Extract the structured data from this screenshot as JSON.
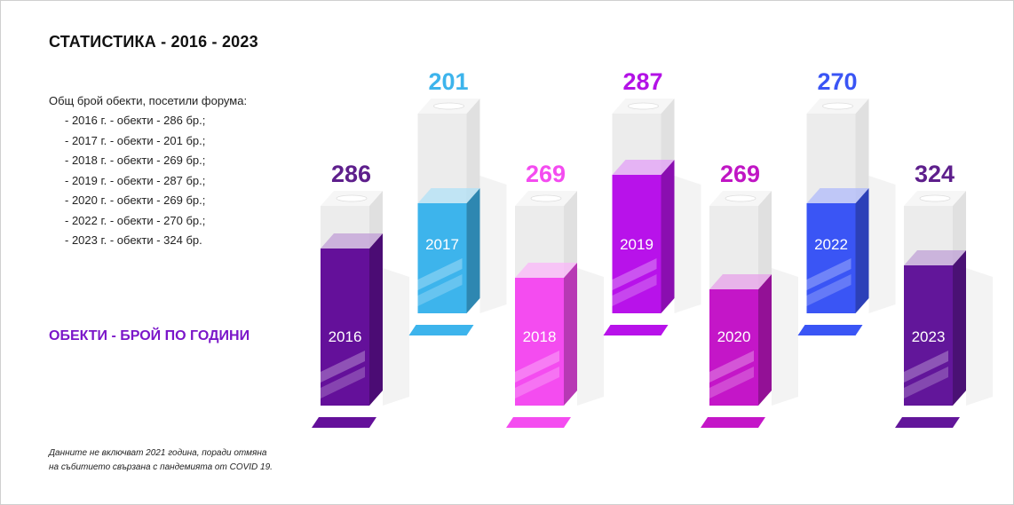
{
  "title": "СТАТИСТИКА - 2016 - 2023",
  "intro": "Общ брой обекти, посетили форума:",
  "list": [
    "- 2016 г. - обекти - 286 бр.;",
    "- 2017 г. - обекти - 201 бр.;",
    "- 2018 г. - обекти - 269 бр.;",
    "- 2019 г. - обекти - 287 бр.;",
    "- 2020 г. - обекти - 269 бр.;",
    "- 2022 г. - обекти - 270 бр.;",
    "- 2023 г. - обекти - 324 бр."
  ],
  "subtitle": "ОБЕКТИ - БРОЙ ПО ГОДИНИ",
  "note": [
    "Данните не включват 2021 година, поради отмяна",
    "на събитието свързана с пандемията от COVID 19."
  ],
  "colors": {
    "subtitle": "#7b16c9"
  },
  "chart_data": {
    "type": "bar",
    "categories": [
      "2016",
      "2017",
      "2018",
      "2019",
      "2020",
      "2022",
      "2023"
    ],
    "values": [
      286,
      201,
      269,
      287,
      269,
      270,
      324
    ],
    "value_labels": [
      "286",
      "201",
      "269",
      "287",
      "269",
      "270",
      "324"
    ],
    "colors": [
      "#64109a",
      "#3db4ec",
      "#f44cf0",
      "#b812ea",
      "#c416c8",
      "#3a55f5",
      "#62169a"
    ],
    "label_colors": [
      "#5e1f8c",
      "#3db4ec",
      "#f44cf0",
      "#b312e6",
      "#c016c4",
      "#3a55f5",
      "#5e1f8c"
    ],
    "title": "",
    "xlabel": "",
    "ylabel": "",
    "grid": false,
    "legend": "none"
  }
}
